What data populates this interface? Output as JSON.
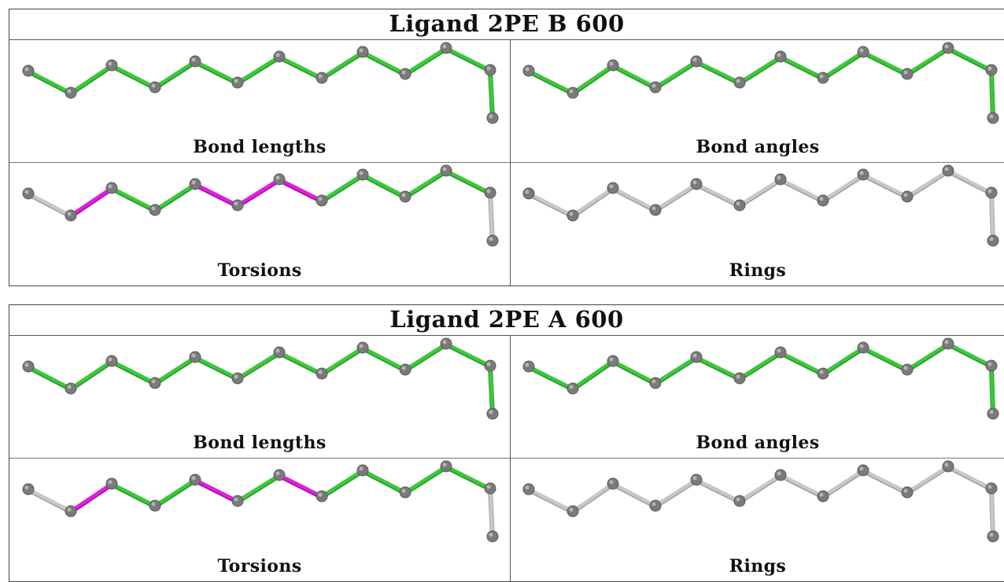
{
  "colors": {
    "good": "#3cc83c",
    "outlier": "#e020e0",
    "neutral": "#c8c8c8",
    "atom": "#7a7a7a"
  },
  "ligands": [
    {
      "title": "Ligand 2PE B 600",
      "panels": [
        {
          "caption": "Bond lengths",
          "bonds": [
            "good",
            "good",
            "good",
            "good",
            "good",
            "good",
            "good",
            "good",
            "good",
            "good",
            "good",
            "good"
          ]
        },
        {
          "caption": "Bond angles",
          "bonds": [
            "good",
            "good",
            "good",
            "good",
            "good",
            "good",
            "good",
            "good",
            "good",
            "good",
            "good",
            "good"
          ]
        },
        {
          "caption": "Torsions",
          "bonds": [
            "neutral",
            "outlier",
            "good",
            "good",
            "outlier",
            "outlier",
            "outlier",
            "good",
            "good",
            "good",
            "good",
            "neutral"
          ]
        },
        {
          "caption": "Rings",
          "bonds": [
            "neutral",
            "neutral",
            "neutral",
            "neutral",
            "neutral",
            "neutral",
            "neutral",
            "neutral",
            "neutral",
            "neutral",
            "neutral",
            "neutral"
          ]
        }
      ]
    },
    {
      "title": "Ligand 2PE A 600",
      "panels": [
        {
          "caption": "Bond lengths",
          "bonds": [
            "good",
            "good",
            "good",
            "good",
            "good",
            "good",
            "good",
            "good",
            "good",
            "good",
            "good",
            "good"
          ]
        },
        {
          "caption": "Bond angles",
          "bonds": [
            "good",
            "good",
            "good",
            "good",
            "good",
            "good",
            "good",
            "good",
            "good",
            "good",
            "good",
            "good"
          ]
        },
        {
          "caption": "Torsions",
          "bonds": [
            "neutral",
            "outlier",
            "good",
            "good",
            "outlier",
            "good",
            "outlier",
            "good",
            "good",
            "good",
            "good",
            "neutral"
          ]
        },
        {
          "caption": "Rings",
          "bonds": [
            "neutral",
            "neutral",
            "neutral",
            "neutral",
            "neutral",
            "neutral",
            "neutral",
            "neutral",
            "neutral",
            "neutral",
            "neutral",
            "neutral"
          ]
        }
      ]
    }
  ]
}
